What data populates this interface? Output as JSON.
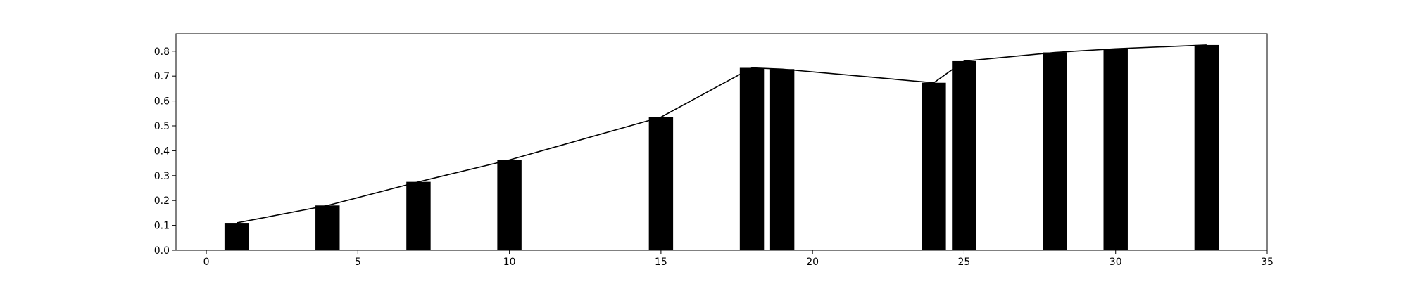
{
  "chart_data": {
    "type": "bar",
    "x": [
      1,
      4,
      7,
      10,
      15,
      18,
      19,
      24,
      25,
      28,
      30,
      33
    ],
    "values": [
      0.11,
      0.18,
      0.275,
      0.363,
      0.535,
      0.733,
      0.728,
      0.673,
      0.76,
      0.795,
      0.81,
      0.825
    ],
    "line": {
      "x": [
        1,
        4,
        7,
        10,
        15,
        18,
        19,
        24,
        25,
        28,
        30,
        33
      ],
      "y": [
        0.11,
        0.18,
        0.275,
        0.363,
        0.535,
        0.733,
        0.728,
        0.673,
        0.76,
        0.795,
        0.81,
        0.825
      ]
    },
    "bar_width_data_units": 0.8,
    "xlim": [
      -1,
      35
    ],
    "ylim": [
      0,
      0.87
    ],
    "xticks": [
      0,
      5,
      10,
      15,
      20,
      25,
      30,
      35
    ],
    "yticks": [
      0.0,
      0.1,
      0.2,
      0.3,
      0.4,
      0.5,
      0.6,
      0.7,
      0.8
    ],
    "xtick_labels": [
      "0",
      "5",
      "10",
      "15",
      "20",
      "25",
      "30",
      "35"
    ],
    "ytick_labels": [
      "0.0",
      "0.1",
      "0.2",
      "0.3",
      "0.4",
      "0.5",
      "0.6",
      "0.7",
      "0.8"
    ],
    "grid": false,
    "bar_color": "#000000",
    "line_color": "#000000"
  }
}
